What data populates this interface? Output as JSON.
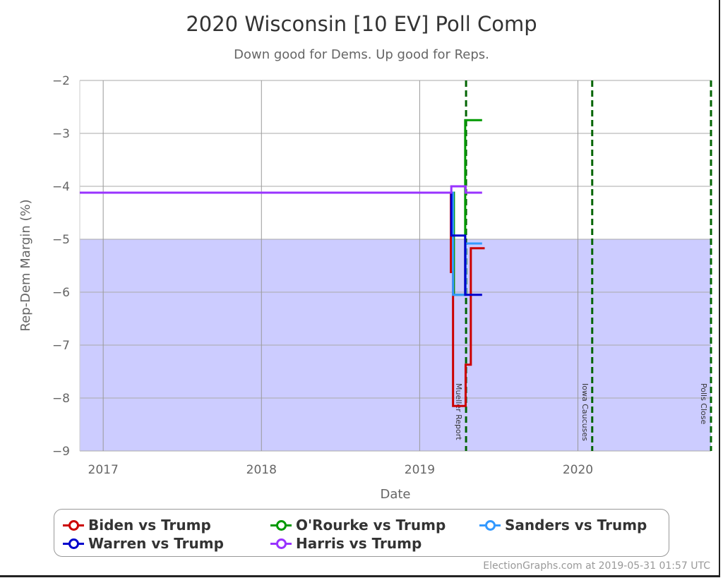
{
  "chart_data": {
    "type": "line",
    "title": "2020 Wisconsin [10 EV] Poll Comp",
    "subtitle": "Down good for Dems. Up good for Reps.",
    "xlabel": "Date",
    "ylabel": "Rep-Dem Margin (%)",
    "xlim": [
      "2016-11-08",
      "2020-11-03"
    ],
    "ylim": [
      -9,
      -2
    ],
    "yticks": [
      "-2",
      "-3",
      "-4",
      "-5",
      "-6",
      "-7",
      "-8",
      "-9"
    ],
    "xticks": [
      {
        "date": "2017-01-01",
        "label": "2017"
      },
      {
        "date": "2018-01-01",
        "label": "2018"
      },
      {
        "date": "2019-01-01",
        "label": "2019"
      },
      {
        "date": "2020-01-01",
        "label": "2020"
      }
    ],
    "grid": true,
    "shaded_band": {
      "from": -9,
      "to": -5,
      "color": "#ccccff"
    },
    "events": [
      {
        "date": "2019-04-18",
        "label": "Mueller Report"
      },
      {
        "date": "2020-02-03",
        "label": "Iowa Caucuses"
      },
      {
        "date": "2020-11-03",
        "label": "Polls Close"
      }
    ],
    "event_color": "#006400",
    "legend_placement": "bottom",
    "series": [
      {
        "name": "O'Rourke vs Trump",
        "color": "#009900",
        "steps": [
          [
            "2016-11-08",
            -4.12
          ],
          [
            "2019-03-21",
            -6.05
          ],
          [
            "2019-04-16",
            -2.75
          ]
        ],
        "end": "2019-05-25"
      },
      {
        "name": "Biden vs Trump",
        "color": "#cc0000",
        "steps": [
          [
            "2016-11-08",
            -4.12
          ],
          [
            "2019-03-14",
            -5.62
          ],
          [
            "2019-03-19",
            -8.15
          ],
          [
            "2019-04-17",
            -7.37
          ],
          [
            "2019-04-29",
            -5.17
          ]
        ],
        "end": "2019-05-31"
      },
      {
        "name": "Sanders vs Trump",
        "color": "#3399ff",
        "steps": [
          [
            "2016-11-08",
            -4.12
          ],
          [
            "2019-03-19",
            -6.05
          ],
          [
            "2019-04-17",
            -5.08
          ]
        ],
        "end": "2019-05-25"
      },
      {
        "name": "Warren vs Trump",
        "color": "#0000cc",
        "steps": [
          [
            "2016-11-08",
            -4.12
          ],
          [
            "2019-03-15",
            -4.93
          ],
          [
            "2019-04-16",
            -6.05
          ]
        ],
        "end": "2019-05-25"
      },
      {
        "name": "Harris vs Trump",
        "color": "#9933ff",
        "steps": [
          [
            "2016-11-08",
            -4.12
          ],
          [
            "2019-03-15",
            -4.0
          ],
          [
            "2019-04-17",
            -4.12
          ]
        ],
        "end": "2019-05-25"
      }
    ]
  },
  "legend": [
    {
      "label": "Biden vs Trump",
      "color": "#cc0000"
    },
    {
      "label": "O'Rourke vs Trump",
      "color": "#009900"
    },
    {
      "label": "Sanders vs Trump",
      "color": "#3399ff"
    },
    {
      "label": "Warren vs Trump",
      "color": "#0000cc"
    },
    {
      "label": "Harris vs Trump",
      "color": "#9933ff"
    }
  ],
  "credit": "ElectionGraphs.com at 2019-05-31 01:57 UTC"
}
